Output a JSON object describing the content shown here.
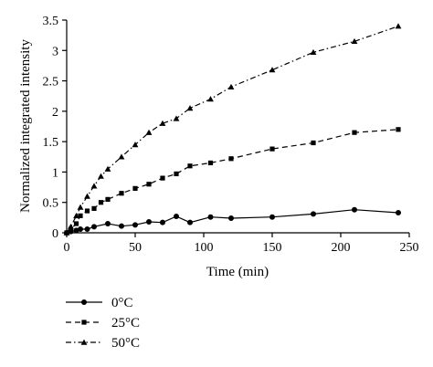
{
  "chart_data": {
    "type": "line",
    "xlabel": "Time (min)",
    "ylabel": "Normalized integrated intensity",
    "xlim": [
      0,
      250
    ],
    "ylim": [
      0,
      3.5
    ],
    "xticks": [
      0,
      50,
      100,
      150,
      200,
      250
    ],
    "yticks": [
      0,
      0.5,
      1,
      1.5,
      2,
      2.5,
      3,
      3.5
    ],
    "xtick_labels": [
      "0",
      "50",
      "100",
      "150",
      "200",
      "250"
    ],
    "ytick_labels": [
      "0",
      "0.5",
      "1",
      "1.5",
      "2",
      "2.5",
      "3",
      "3.5"
    ],
    "grid": false,
    "legend_position": "bottom-left, below plot",
    "series": [
      {
        "name": "0°C",
        "marker": "circle",
        "line": "solid",
        "x": [
          0,
          3,
          7,
          10,
          15,
          20,
          30,
          40,
          50,
          60,
          70,
          80,
          90,
          105,
          120,
          150,
          180,
          210,
          242
        ],
        "y": [
          0,
          0.02,
          0.04,
          0.06,
          0.06,
          0.1,
          0.15,
          0.11,
          0.13,
          0.18,
          0.17,
          0.27,
          0.17,
          0.26,
          0.24,
          0.26,
          0.31,
          0.38,
          0.33
        ]
      },
      {
        "name": "25°C",
        "marker": "square",
        "line": "dashed",
        "x": [
          0,
          3,
          7,
          10,
          15,
          20,
          25,
          30,
          40,
          50,
          60,
          70,
          80,
          90,
          105,
          120,
          150,
          180,
          210,
          242
        ],
        "y": [
          0,
          0.06,
          0.15,
          0.28,
          0.36,
          0.4,
          0.5,
          0.55,
          0.65,
          0.73,
          0.8,
          0.9,
          0.97,
          1.1,
          1.15,
          1.22,
          1.38,
          1.48,
          1.65,
          1.7
        ]
      },
      {
        "name": "50°C",
        "marker": "triangle",
        "line": "dash-dot",
        "x": [
          0,
          3,
          7,
          10,
          15,
          20,
          25,
          30,
          40,
          50,
          60,
          70,
          80,
          90,
          105,
          120,
          150,
          180,
          210,
          242
        ],
        "y": [
          0,
          0.1,
          0.28,
          0.42,
          0.6,
          0.77,
          0.93,
          1.05,
          1.25,
          1.45,
          1.65,
          1.8,
          1.88,
          2.05,
          2.2,
          2.4,
          2.68,
          2.97,
          3.15,
          3.4
        ]
      }
    ]
  }
}
